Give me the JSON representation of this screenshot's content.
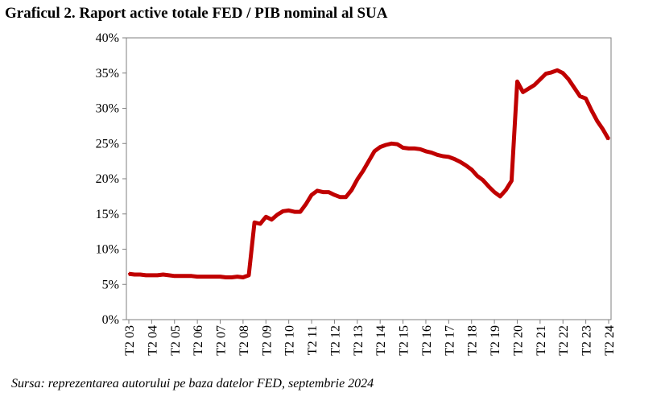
{
  "title": "Graficul 2. Raport active totale FED / PIB nominal al SUA",
  "source": "Sursa: reprezentarea autorului pe baza datelor FED, septembrie 2024",
  "chart_data": {
    "type": "line",
    "title": "Graficul 2. Raport active totale FED / PIB nominal al SUA",
    "xlabel": "",
    "ylabel": "",
    "ylim": [
      0,
      40
    ],
    "yticks": [
      "0%",
      "5%",
      "10%",
      "15%",
      "20%",
      "25%",
      "30%",
      "35%",
      "40%"
    ],
    "categories": [
      "T2 03",
      "T2 04",
      "T2 05",
      "T2 06",
      "T2 07",
      "T2 08",
      "T2 09",
      "T2 10",
      "T2 11",
      "T2 12",
      "T2 13",
      "T2 14",
      "T2 15",
      "T2 16",
      "T2 17",
      "T2 18",
      "T2 19",
      "T2 20",
      "T2 21",
      "T2 22",
      "T2 23",
      "T2 24"
    ],
    "grid": false,
    "color": "#c00000",
    "series": [
      {
        "x": [
          2003.0,
          2003.25,
          2003.5,
          2003.75,
          2004.0,
          2004.25,
          2004.5,
          2004.75,
          2005.0,
          2005.25,
          2005.5,
          2005.75,
          2006.0,
          2006.25,
          2006.5,
          2006.75,
          2007.0,
          2007.25,
          2007.5,
          2007.75,
          2008.0,
          2008.25,
          2008.5,
          2008.75,
          2009.0,
          2009.25,
          2009.5,
          2009.75,
          2010.0,
          2010.25,
          2010.5,
          2010.75,
          2011.0,
          2011.25,
          2011.5,
          2011.75,
          2012.0,
          2012.25,
          2012.5,
          2012.75,
          2013.0,
          2013.25,
          2013.5,
          2013.75,
          2014.0,
          2014.25,
          2014.5,
          2014.75,
          2015.0,
          2015.25,
          2015.5,
          2015.75,
          2016.0,
          2016.25,
          2016.5,
          2016.75,
          2017.0,
          2017.25,
          2017.5,
          2017.75,
          2018.0,
          2018.25,
          2018.5,
          2018.75,
          2019.0,
          2019.25,
          2019.5,
          2019.75,
          2020.0,
          2020.25,
          2020.5,
          2020.75,
          2021.0,
          2021.25,
          2021.5,
          2021.75,
          2022.0,
          2022.25,
          2022.5,
          2022.75,
          2023.0,
          2023.25,
          2023.5,
          2023.75,
          2024.0
        ],
        "values": [
          6.5,
          6.4,
          6.4,
          6.3,
          6.3,
          6.3,
          6.4,
          6.3,
          6.2,
          6.2,
          6.2,
          6.2,
          6.1,
          6.1,
          6.1,
          6.1,
          6.1,
          6.0,
          6.0,
          6.1,
          6.0,
          6.3,
          13.8,
          13.6,
          14.6,
          14.2,
          14.9,
          15.4,
          15.5,
          15.3,
          15.3,
          16.4,
          17.7,
          18.3,
          18.1,
          18.1,
          17.7,
          17.4,
          17.4,
          18.4,
          19.9,
          21.1,
          22.5,
          23.9,
          24.5,
          24.8,
          25.0,
          24.9,
          24.4,
          24.3,
          24.3,
          24.2,
          23.9,
          23.7,
          23.4,
          23.2,
          23.1,
          22.8,
          22.4,
          21.9,
          21.3,
          20.4,
          19.8,
          18.9,
          18.1,
          17.5,
          18.4,
          19.7,
          33.8,
          32.3,
          32.8,
          33.3,
          34.1,
          34.9,
          35.1,
          35.4,
          35.0,
          34.1,
          32.9,
          31.7,
          31.4,
          29.7,
          28.2,
          27.0,
          25.6
        ]
      }
    ]
  }
}
